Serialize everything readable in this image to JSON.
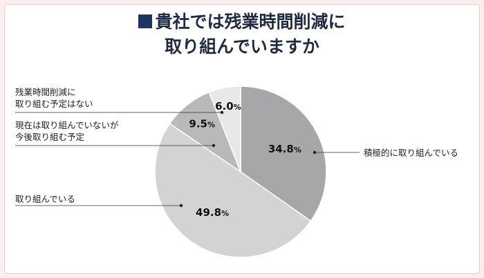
{
  "title": {
    "line1": "貴社では残業時間削減に",
    "line2": "取り組んでいますか"
  },
  "chart_data": {
    "type": "pie",
    "slices": [
      {
        "label": "積極的に取り組んでいる",
        "value": 34.8,
        "pct_text": "34.8",
        "color": "#a7a7a9"
      },
      {
        "label": "取り組んでいる",
        "value": 49.8,
        "pct_text": "49.8",
        "color": "#d3d3d5"
      },
      {
        "label": "現在は取り組んでいないが今後取り組む予定",
        "label_lines": [
          "現在は取り組んでいないが",
          "今後取り組む予定"
        ],
        "value": 9.5,
        "pct_text": "9.5",
        "color": "#b9b9bb"
      },
      {
        "label": "残業時間削減に取り組む予定はない",
        "label_lines": [
          "残業時間削減に",
          "取り組む予定はない"
        ],
        "value": 6.0,
        "pct_text": "6.0",
        "color": "#e8e8ea"
      }
    ],
    "unit": "%"
  }
}
